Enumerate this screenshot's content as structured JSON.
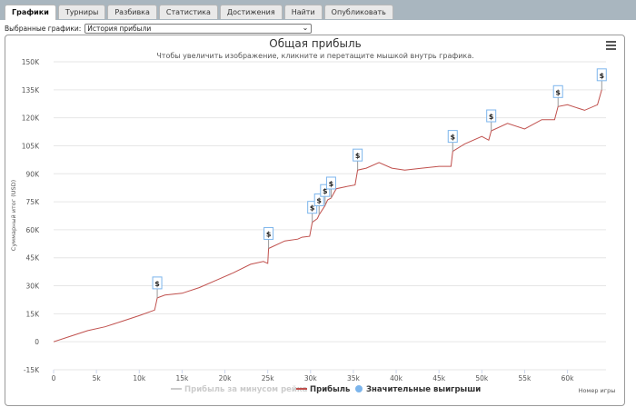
{
  "tabs": [
    {
      "label": "Графики",
      "active": true
    },
    {
      "label": "Турниры"
    },
    {
      "label": "Разбивка"
    },
    {
      "label": "Статистика"
    },
    {
      "label": "Достижения"
    },
    {
      "label": "Найти"
    },
    {
      "label": "Опубликовать"
    }
  ],
  "selector": {
    "label": "Выбранные графики:",
    "value": "История прибыли"
  },
  "menu_icon": "hamburger-icon",
  "colors": {
    "profit_line": "#c0504d",
    "rake_line": "#cccccc",
    "big_win_marker": "#7cb5ec",
    "axis_text": "#555555"
  },
  "chart_data": {
    "type": "line",
    "title": "Общая прибыль",
    "subtitle": "Чтобы увеличить изображение, кликните и перетащите мышкой внутрь графика.",
    "xlabel": "Номер игры",
    "ylabel": "Суммарный итог (USD)",
    "xlim": [
      0,
      64500
    ],
    "ylim": [
      -15000,
      150000
    ],
    "x_ticks": [
      "0",
      "5k",
      "10k",
      "15k",
      "20k",
      "25k",
      "30k",
      "35k",
      "40k",
      "45k",
      "50k",
      "55k",
      "60k"
    ],
    "y_ticks": [
      "-15K",
      "0",
      "15K",
      "30K",
      "45K",
      "60K",
      "75K",
      "90K",
      "105K",
      "120K",
      "135K",
      "150K"
    ],
    "legend": [
      "Прибыль за минусом рейка",
      "Прибыль",
      "Значительные выигрыши"
    ],
    "legend_placement": "bottom-center",
    "grid": true,
    "series": [
      {
        "name": "Прибыль",
        "x": [
          0,
          2000,
          4000,
          6000,
          8000,
          10000,
          11800,
          12100,
          13000,
          15000,
          17000,
          19000,
          21000,
          23000,
          24500,
          25000,
          25100,
          27000,
          28500,
          29000,
          29900,
          30200,
          30800,
          31000,
          31700,
          32000,
          32400,
          33000,
          34000,
          35200,
          35500,
          36500,
          38000,
          39500,
          41000,
          43000,
          45000,
          46400,
          46600,
          48000,
          50000,
          50800,
          51100,
          53000,
          55000,
          57000,
          58500,
          58900,
          60000,
          62000,
          63500,
          64000
        ],
        "y": [
          0,
          3000,
          6000,
          8000,
          11000,
          14000,
          17000,
          23500,
          25000,
          26000,
          29000,
          33000,
          37000,
          41500,
          43000,
          42000,
          50000,
          54000,
          55000,
          56000,
          56500,
          64000,
          66000,
          68000,
          73000,
          76000,
          77000,
          82000,
          83000,
          84000,
          92000,
          93000,
          96000,
          93000,
          92000,
          93000,
          94000,
          94000,
          102000,
          106000,
          110000,
          108000,
          113000,
          117000,
          114000,
          119000,
          119000,
          126000,
          127000,
          124000,
          127000,
          135000
        ]
      },
      {
        "name": "Значительные выигрыши",
        "x": [
          12100,
          25100,
          30200,
          31000,
          31700,
          32400,
          35500,
          46600,
          51100,
          58900,
          64000
        ],
        "y": [
          23500,
          50000,
          64000,
          68000,
          73000,
          77000,
          92000,
          102000,
          113000,
          126000,
          135000
        ]
      }
    ]
  }
}
